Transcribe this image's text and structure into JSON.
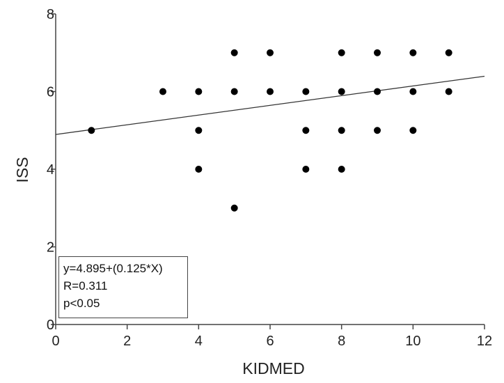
{
  "chart_data": {
    "type": "scatter",
    "title": "",
    "xlabel": "KIDMED",
    "ylabel": "ISS",
    "xlim": [
      0,
      12
    ],
    "ylim": [
      0,
      8
    ],
    "x_ticks": [
      0,
      2,
      4,
      6,
      8,
      10,
      12
    ],
    "y_ticks": [
      0,
      2,
      4,
      6,
      8
    ],
    "grid": false,
    "points": [
      {
        "x": 1,
        "y": 5
      },
      {
        "x": 3,
        "y": 6
      },
      {
        "x": 4,
        "y": 6
      },
      {
        "x": 4,
        "y": 5
      },
      {
        "x": 4,
        "y": 4
      },
      {
        "x": 5,
        "y": 7
      },
      {
        "x": 5,
        "y": 6
      },
      {
        "x": 5,
        "y": 3
      },
      {
        "x": 6,
        "y": 7
      },
      {
        "x": 6,
        "y": 6
      },
      {
        "x": 7,
        "y": 6
      },
      {
        "x": 7,
        "y": 5
      },
      {
        "x": 7,
        "y": 4
      },
      {
        "x": 8,
        "y": 7
      },
      {
        "x": 8,
        "y": 6
      },
      {
        "x": 8,
        "y": 5
      },
      {
        "x": 8,
        "y": 4
      },
      {
        "x": 9,
        "y": 7
      },
      {
        "x": 9,
        "y": 6
      },
      {
        "x": 9,
        "y": 5
      },
      {
        "x": 10,
        "y": 7
      },
      {
        "x": 10,
        "y": 6
      },
      {
        "x": 10,
        "y": 5
      },
      {
        "x": 11,
        "y": 7
      },
      {
        "x": 11,
        "y": 6
      }
    ],
    "regression": {
      "intercept": 4.895,
      "slope": 0.125
    },
    "stats": {
      "equation": "y=4.895+(0.125*X)",
      "r": "R=0.311",
      "p": "p<0.05"
    },
    "colors": {
      "points": "#000000",
      "line": "#333333",
      "axes": "#444444"
    }
  }
}
